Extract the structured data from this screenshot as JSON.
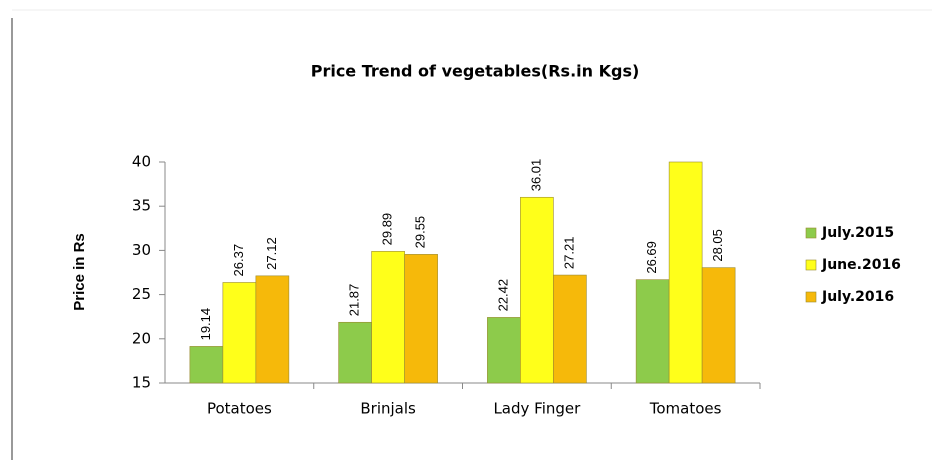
{
  "chart_data": {
    "type": "bar",
    "title": "Price Trend of vegetables(Rs.in Kgs)",
    "y_label": "Price in Rs",
    "categories": [
      "Potatoes",
      "Brinjals",
      "Lady Finger",
      "Tomatoes"
    ],
    "series": [
      {
        "name": "July.2015",
        "color": "#8dcb4b",
        "values": [
          19.14,
          21.87,
          22.42,
          26.69
        ],
        "value_labels": [
          "19.14",
          "21.87",
          "22.42",
          "26.69"
        ]
      },
      {
        "name": "June.2016",
        "color": "#ffff1a",
        "values": [
          26.37,
          29.89,
          36.01,
          40
        ],
        "value_labels": [
          "26.37",
          "29.89",
          "36.01",
          null
        ]
      },
      {
        "name": "July.2016",
        "color": "#f6b90a",
        "values": [
          27.12,
          29.55,
          27.21,
          28.05
        ],
        "value_labels": [
          "27.12",
          "29.55",
          "27.21",
          "28.05"
        ]
      }
    ],
    "ylim": [
      15,
      40
    ],
    "yticks": [
      15,
      20,
      25,
      30,
      35,
      40
    ],
    "grid": false,
    "legend": "right"
  }
}
